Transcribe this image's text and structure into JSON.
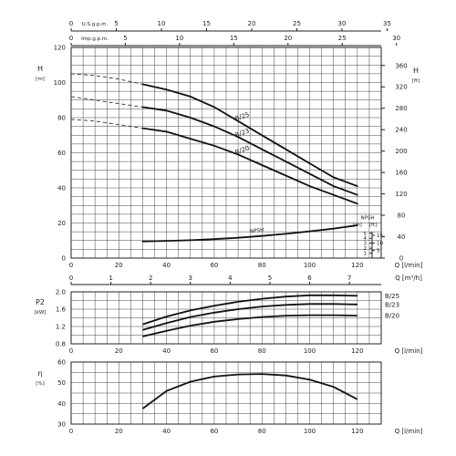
{
  "chart_data": [
    {
      "type": "line",
      "id": "head",
      "ylabel": "H",
      "ylabel_unit": "[m]",
      "ylabel_right": "H",
      "ylabel_right_unit": "[ft]",
      "ylim": [
        0,
        120
      ],
      "y_ticks": [
        "0",
        "20",
        "40",
        "60",
        "80",
        "100",
        "120"
      ],
      "y_right_ticks": [
        "0",
        "40",
        "80",
        "120",
        "160",
        "200",
        "240",
        "280",
        "320",
        "360"
      ],
      "xlim": [
        0,
        130
      ],
      "x_ticks": [
        "0",
        "20",
        "40",
        "60",
        "80",
        "100",
        "120"
      ],
      "xlabel": "Q [l/min]",
      "x2label": "Q [m³/h]",
      "x2_ticks": [
        "0",
        "1",
        "2",
        "3",
        "4",
        "5",
        "6",
        "7"
      ],
      "top_axis_1": {
        "label": "U.S.g.p.m.",
        "ticks": [
          "0",
          "5",
          "10",
          "15",
          "20",
          "25",
          "30",
          "35"
        ]
      },
      "top_axis_2": {
        "label": "Imp.g.p.m.",
        "ticks": [
          "0",
          "5",
          "10",
          "15",
          "20",
          "25",
          "30"
        ]
      },
      "series": [
        {
          "name": "B/25",
          "x": [
            30,
            40,
            50,
            60,
            70,
            80,
            90,
            100,
            110,
            120
          ],
          "y": [
            99,
            96,
            92,
            86,
            78,
            70,
            62,
            54,
            46,
            41
          ],
          "dashed_x": [
            0,
            10,
            20,
            30
          ],
          "dashed_y": [
            105,
            104,
            102,
            99
          ]
        },
        {
          "name": "B/23",
          "x": [
            30,
            40,
            50,
            60,
            70,
            80,
            90,
            100,
            110,
            120
          ],
          "y": [
            86,
            84,
            80,
            75,
            69,
            62,
            55,
            48,
            41,
            36
          ],
          "dashed_x": [
            0,
            10,
            20,
            30
          ],
          "dashed_y": [
            92,
            90,
            88,
            86
          ]
        },
        {
          "name": "B/20",
          "x": [
            30,
            40,
            50,
            60,
            70,
            80,
            90,
            100,
            110,
            120
          ],
          "y": [
            74,
            72,
            68,
            64,
            59,
            53,
            47,
            41,
            36,
            31
          ],
          "dashed_x": [
            0,
            10,
            20,
            30
          ],
          "dashed_y": [
            79,
            78,
            76,
            74
          ]
        },
        {
          "name": "NPSH",
          "x": [
            30,
            40,
            50,
            60,
            70,
            80,
            90,
            100,
            110,
            120
          ],
          "y": [
            9.5,
            9.8,
            10.2,
            10.8,
            11.6,
            12.6,
            13.8,
            15.2,
            16.8,
            18.7
          ]
        }
      ],
      "npsh_axis": {
        "label": "NPSH",
        "unit_m": "[m]",
        "unit_ft": "[ft]",
        "m_ticks": [
          "1",
          "2",
          "3",
          "4",
          "5"
        ],
        "ft_ticks": [
          "5",
          "10",
          "15"
        ]
      }
    },
    {
      "type": "line",
      "id": "power",
      "ylabel": "P2",
      "ylabel_unit": "[kW]",
      "ylim": [
        0.8,
        2.0
      ],
      "y_ticks": [
        "0.8",
        "1.2",
        "1.6",
        "2.0"
      ],
      "xlim": [
        0,
        130
      ],
      "x_ticks": [
        "0",
        "20",
        "40",
        "60",
        "80",
        "100",
        "120"
      ],
      "xlabel": "Q [l/min]",
      "series": [
        {
          "name": "B/25",
          "x": [
            30,
            40,
            50,
            60,
            70,
            80,
            90,
            100,
            110,
            120
          ],
          "y": [
            1.25,
            1.43,
            1.57,
            1.68,
            1.77,
            1.84,
            1.89,
            1.92,
            1.92,
            1.91
          ]
        },
        {
          "name": "B/23",
          "x": [
            30,
            40,
            50,
            60,
            70,
            80,
            90,
            100,
            110,
            120
          ],
          "y": [
            1.12,
            1.28,
            1.42,
            1.52,
            1.6,
            1.66,
            1.7,
            1.72,
            1.72,
            1.71
          ]
        },
        {
          "name": "B/20",
          "x": [
            30,
            40,
            50,
            60,
            70,
            80,
            90,
            100,
            110,
            120
          ],
          "y": [
            0.97,
            1.1,
            1.22,
            1.31,
            1.37,
            1.42,
            1.45,
            1.46,
            1.46,
            1.45
          ]
        }
      ]
    },
    {
      "type": "line",
      "id": "efficiency",
      "ylabel": "η",
      "ylabel_unit": "[%]",
      "ylim": [
        30,
        60
      ],
      "y_ticks": [
        "30",
        "40",
        "50",
        "60"
      ],
      "xlim": [
        0,
        130
      ],
      "x_ticks": [
        "0",
        "20",
        "40",
        "60",
        "80",
        "100",
        "120"
      ],
      "xlabel": "Q [l/min]",
      "series": [
        {
          "name": "",
          "x": [
            30,
            40,
            50,
            60,
            70,
            80,
            90,
            100,
            110,
            120
          ],
          "y": [
            37.5,
            46,
            50.5,
            53,
            54,
            54.2,
            53.5,
            51.5,
            48,
            42
          ]
        }
      ]
    }
  ]
}
